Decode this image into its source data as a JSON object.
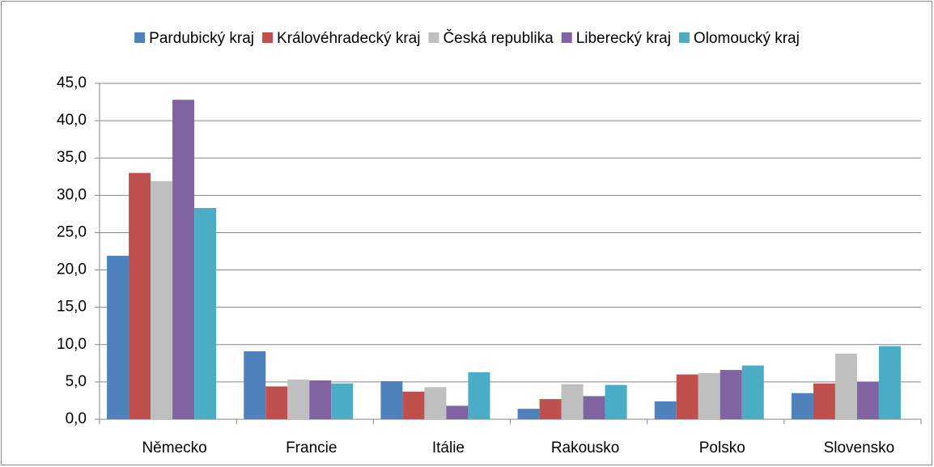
{
  "chart_data": {
    "type": "bar",
    "categories": [
      "Německo",
      "Francie",
      "Itálie",
      "Rakousko",
      "Polsko",
      "Slovensko"
    ],
    "series": [
      {
        "name": "Pardubický kraj",
        "color": "#4f81bd",
        "values": [
          21.9,
          9.1,
          5.1,
          1.4,
          2.4,
          3.5
        ]
      },
      {
        "name": "Královéhradecký kraj",
        "color": "#c0504d",
        "values": [
          33.0,
          4.4,
          3.7,
          2.7,
          6.0,
          4.8
        ]
      },
      {
        "name": "Česká republika",
        "color": "#bfbfbf",
        "values": [
          31.9,
          5.3,
          4.3,
          4.7,
          6.2,
          8.8
        ]
      },
      {
        "name": "Liberecký kraj",
        "color": "#8064a2",
        "values": [
          42.8,
          5.2,
          1.8,
          3.1,
          6.6,
          5.0
        ]
      },
      {
        "name": "Olomoucký kraj",
        "color": "#4bacc6",
        "values": [
          28.3,
          4.8,
          6.3,
          4.6,
          7.2,
          9.8
        ]
      }
    ],
    "ylim": [
      0,
      45
    ],
    "yticks": [
      {
        "value": 0,
        "label": "0,0"
      },
      {
        "value": 5,
        "label": "5,0"
      },
      {
        "value": 10,
        "label": "10,0"
      },
      {
        "value": 15,
        "label": "15,0"
      },
      {
        "value": 20,
        "label": "20,0"
      },
      {
        "value": 25,
        "label": "25,0"
      },
      {
        "value": 30,
        "label": "30,0"
      },
      {
        "value": 35,
        "label": "35,0"
      },
      {
        "value": 40,
        "label": "40,0"
      },
      {
        "value": 45,
        "label": "45,0"
      }
    ],
    "grid": true,
    "legend": "top"
  }
}
